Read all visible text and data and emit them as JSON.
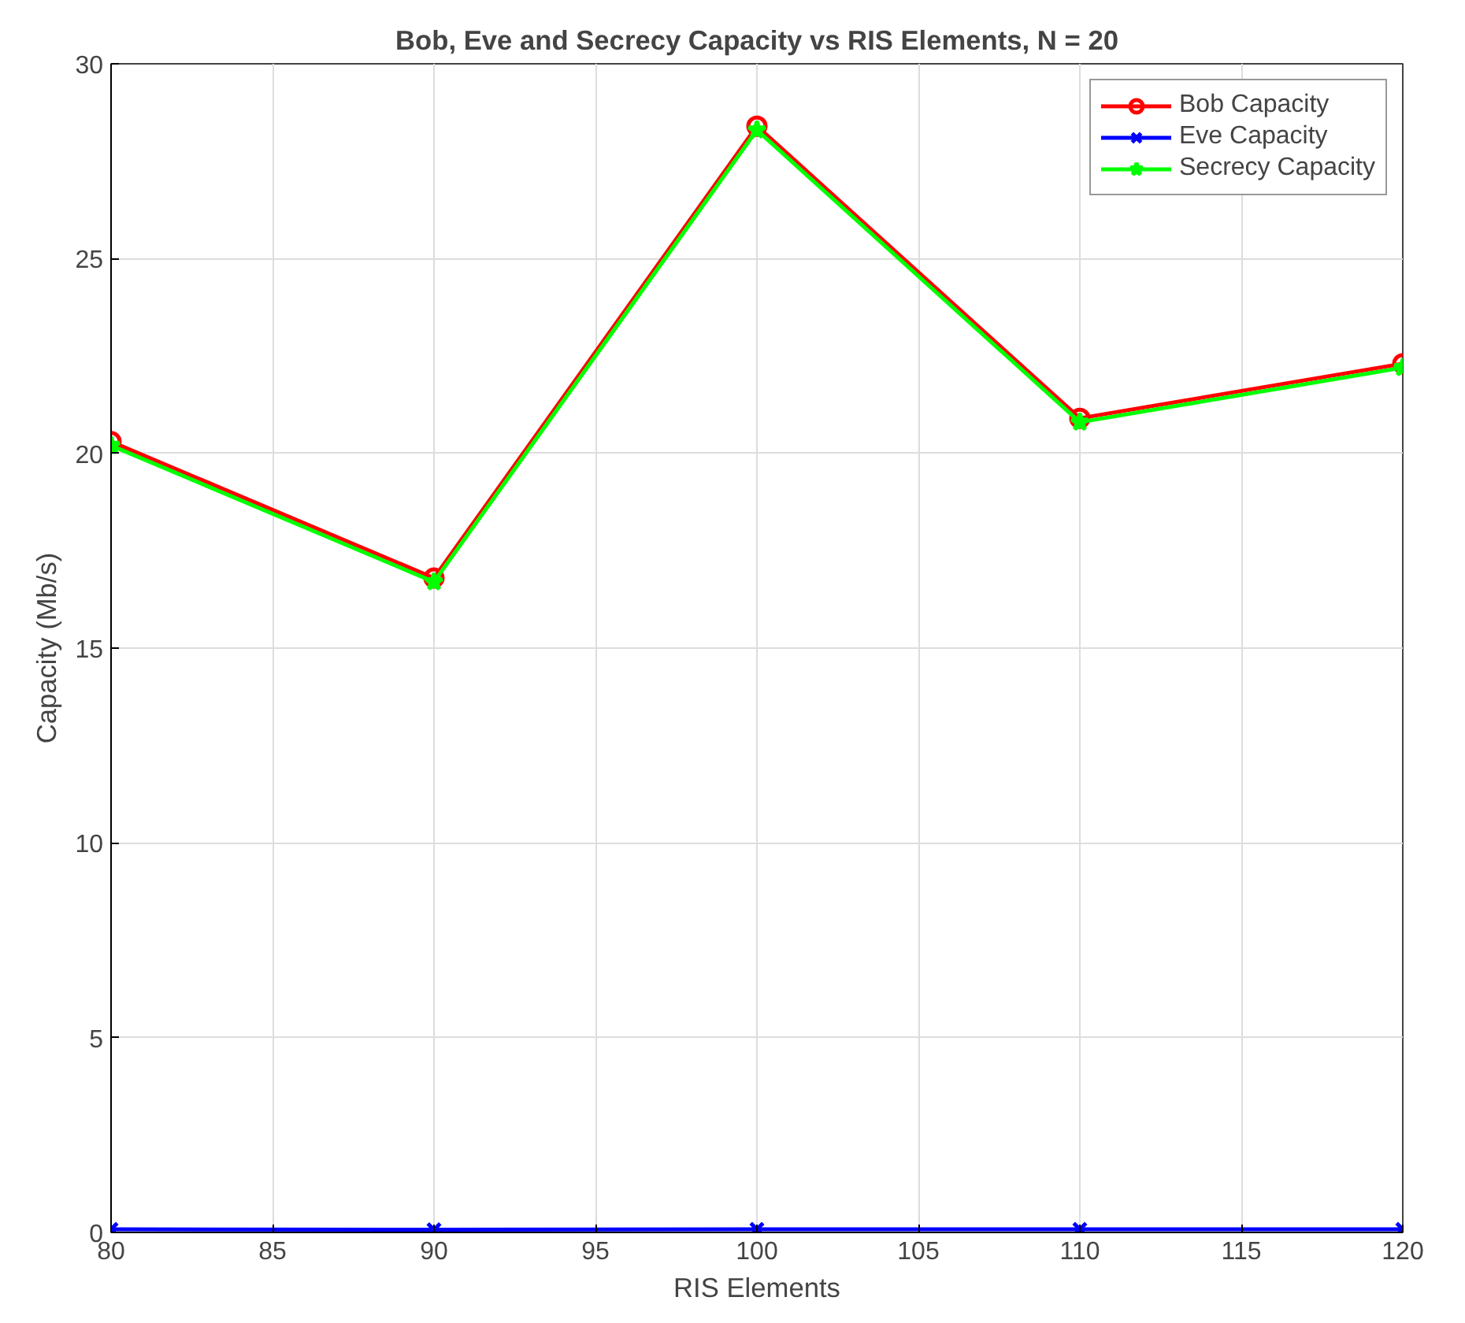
{
  "chart_data": {
    "type": "line",
    "title": "Bob, Eve and Secrecy Capacity vs RIS Elements, N = 20",
    "xlabel": "RIS Elements",
    "ylabel": "Capacity (Mb/s)",
    "x": [
      80,
      90,
      100,
      110,
      120
    ],
    "series": [
      {
        "name": "Bob Capacity",
        "color": "#ff0000",
        "marker": "circle",
        "values": [
          20.3,
          16.8,
          28.4,
          20.9,
          22.3
        ]
      },
      {
        "name": "Eve Capacity",
        "color": "#0000ff",
        "marker": "cross",
        "values": [
          0.08,
          0.07,
          0.08,
          0.08,
          0.08
        ]
      },
      {
        "name": "Secrecy Capacity",
        "color": "#00ff00",
        "marker": "star",
        "values": [
          20.2,
          16.7,
          28.3,
          20.8,
          22.2
        ]
      }
    ],
    "xlim": [
      80,
      120
    ],
    "xticks": [
      80,
      85,
      90,
      95,
      100,
      105,
      110,
      115,
      120
    ],
    "ylim": [
      0,
      30
    ],
    "yticks": [
      0,
      5,
      10,
      15,
      20,
      25,
      30
    ],
    "grid": true,
    "legend": "top right",
    "line_style": "solid"
  }
}
